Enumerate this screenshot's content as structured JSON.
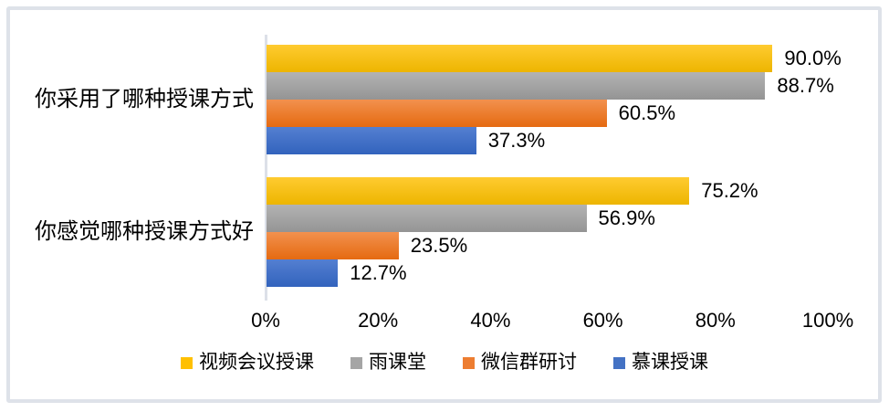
{
  "chart_data": {
    "type": "bar",
    "orientation": "horizontal",
    "title": "",
    "categories": [
      "你采用了哪种授课方式",
      "你感觉哪种授课方式好"
    ],
    "series": [
      {
        "key": "video-conference-teaching",
        "name": "视频会议授课",
        "color": "#FFC000",
        "gradient": [
          "#FFCB30",
          "#EDB500"
        ],
        "values": [
          90.0,
          75.2
        ],
        "data_labels": [
          "90.0%",
          "75.2%"
        ]
      },
      {
        "key": "rain-classroom",
        "name": "雨课堂",
        "color": "#A5A5A5",
        "gradient": [
          "#B3B3B3",
          "#949494"
        ],
        "values": [
          88.7,
          56.9
        ],
        "data_labels": [
          "88.7%",
          "56.9%"
        ]
      },
      {
        "key": "wechat-group-discussion",
        "name": "微信群研讨",
        "color": "#ED7D31",
        "gradient": [
          "#F2914E",
          "#E56A11"
        ],
        "values": [
          60.5,
          23.5
        ],
        "data_labels": [
          "60.5%",
          "23.5%"
        ]
      },
      {
        "key": "mooc-teaching",
        "name": "慕课授课",
        "color": "#4472C4",
        "gradient": [
          "#547FD1",
          "#3263BD"
        ],
        "values": [
          37.3,
          12.7
        ],
        "data_labels": [
          "37.3%",
          "12.7%"
        ]
      }
    ],
    "x_axis": {
      "ticks": [
        "0%",
        "20%",
        "40%",
        "60%",
        "80%",
        "100%"
      ],
      "tick_values": [
        0,
        20,
        40,
        60,
        80,
        100
      ],
      "min": 0,
      "max": 100
    },
    "grid": false,
    "legend_position": "bottom",
    "colors": {
      "axis_line": "#DCE0E8",
      "text": "#000000",
      "card_border": "#DEE2E9",
      "background": "#FFFFFF"
    }
  }
}
